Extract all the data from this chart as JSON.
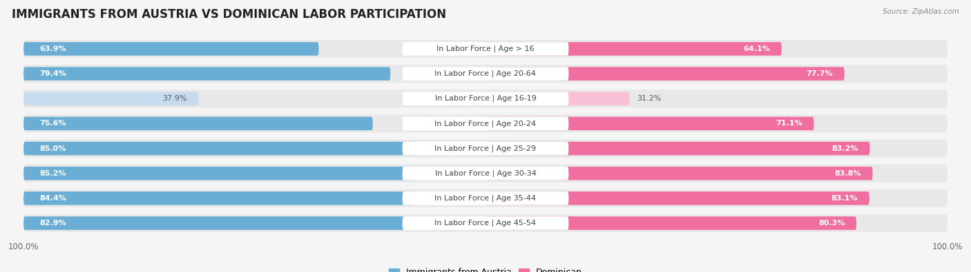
{
  "title": "IMMIGRANTS FROM AUSTRIA VS DOMINICAN LABOR PARTICIPATION",
  "source": "Source: ZipAtlas.com",
  "categories": [
    "In Labor Force | Age > 16",
    "In Labor Force | Age 20-64",
    "In Labor Force | Age 16-19",
    "In Labor Force | Age 20-24",
    "In Labor Force | Age 25-29",
    "In Labor Force | Age 30-34",
    "In Labor Force | Age 35-44",
    "In Labor Force | Age 45-54"
  ],
  "austria_values": [
    63.9,
    79.4,
    37.9,
    75.6,
    85.0,
    85.2,
    84.4,
    82.9
  ],
  "dominican_values": [
    64.1,
    77.7,
    31.2,
    71.1,
    83.2,
    83.8,
    83.1,
    80.3
  ],
  "austria_color": "#6aaed6",
  "austria_color_light": "#c6dcee",
  "dominican_color": "#f06ea0",
  "dominican_color_light": "#f9c0d8",
  "row_bg_color": "#e8e8e8",
  "background_color": "#f5f5f5",
  "max_value": 100.0,
  "title_fontsize": 12,
  "label_fontsize": 8,
  "value_fontsize": 8,
  "tick_fontsize": 8.5,
  "legend_fontsize": 9
}
